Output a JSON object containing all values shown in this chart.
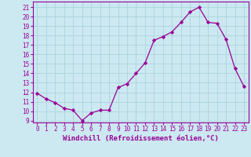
{
  "x": [
    0,
    1,
    2,
    3,
    4,
    5,
    6,
    7,
    8,
    9,
    10,
    11,
    12,
    13,
    14,
    15,
    16,
    17,
    18,
    19,
    20,
    21,
    22,
    23
  ],
  "y": [
    11.9,
    11.3,
    10.9,
    10.3,
    10.1,
    9.0,
    9.8,
    10.1,
    10.1,
    12.5,
    12.9,
    14.0,
    15.1,
    17.5,
    17.9,
    18.4,
    19.4,
    20.5,
    21.0,
    19.4,
    19.3,
    17.6,
    14.5,
    12.6
  ],
  "line_color": "#990099",
  "marker": "D",
  "marker_size": 2.2,
  "bg_color": "#cce8f0",
  "grid_color": "#aad4e0",
  "xlabel": "Windchill (Refroidissement éolien,°C)",
  "xlim": [
    -0.5,
    23.5
  ],
  "ylim": [
    8.8,
    21.6
  ],
  "yticks": [
    9,
    10,
    11,
    12,
    13,
    14,
    15,
    16,
    17,
    18,
    19,
    20,
    21
  ],
  "xticks": [
    0,
    1,
    2,
    3,
    4,
    5,
    6,
    7,
    8,
    9,
    10,
    11,
    12,
    13,
    14,
    15,
    16,
    17,
    18,
    19,
    20,
    21,
    22,
    23
  ],
  "label_color": "#990099",
  "spine_color": "#990099",
  "tick_fontsize": 5.5,
  "xlabel_fontsize": 6.5
}
